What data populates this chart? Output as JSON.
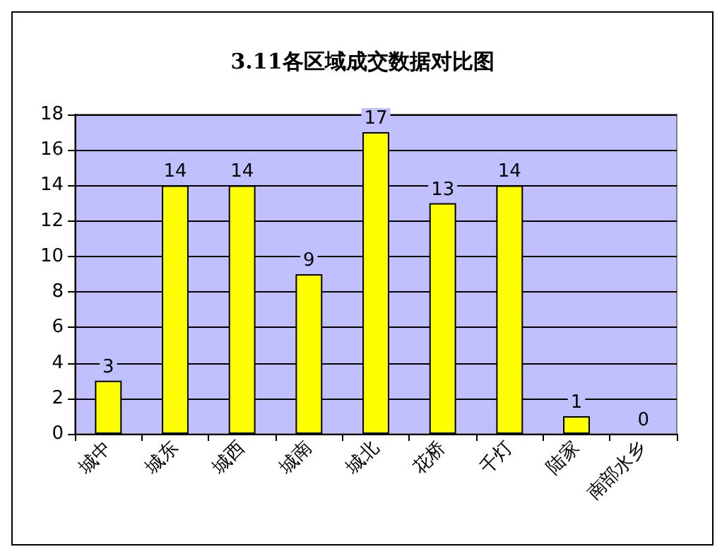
{
  "chart_data": {
    "type": "bar",
    "title": "3.11各区域成交数据对比图",
    "categories": [
      "城中",
      "城东",
      "城西",
      "城南",
      "城北",
      "花桥",
      "千灯",
      "陆家",
      "南部水乡"
    ],
    "values": [
      3,
      14,
      14,
      9,
      17,
      13,
      14,
      1,
      0
    ],
    "color": "#ffff00",
    "ylim": [
      0,
      18
    ],
    "yticks": [
      0,
      2,
      4,
      6,
      8,
      10,
      12,
      14,
      16,
      18
    ],
    "grid": "y",
    "data_labels": true
  }
}
